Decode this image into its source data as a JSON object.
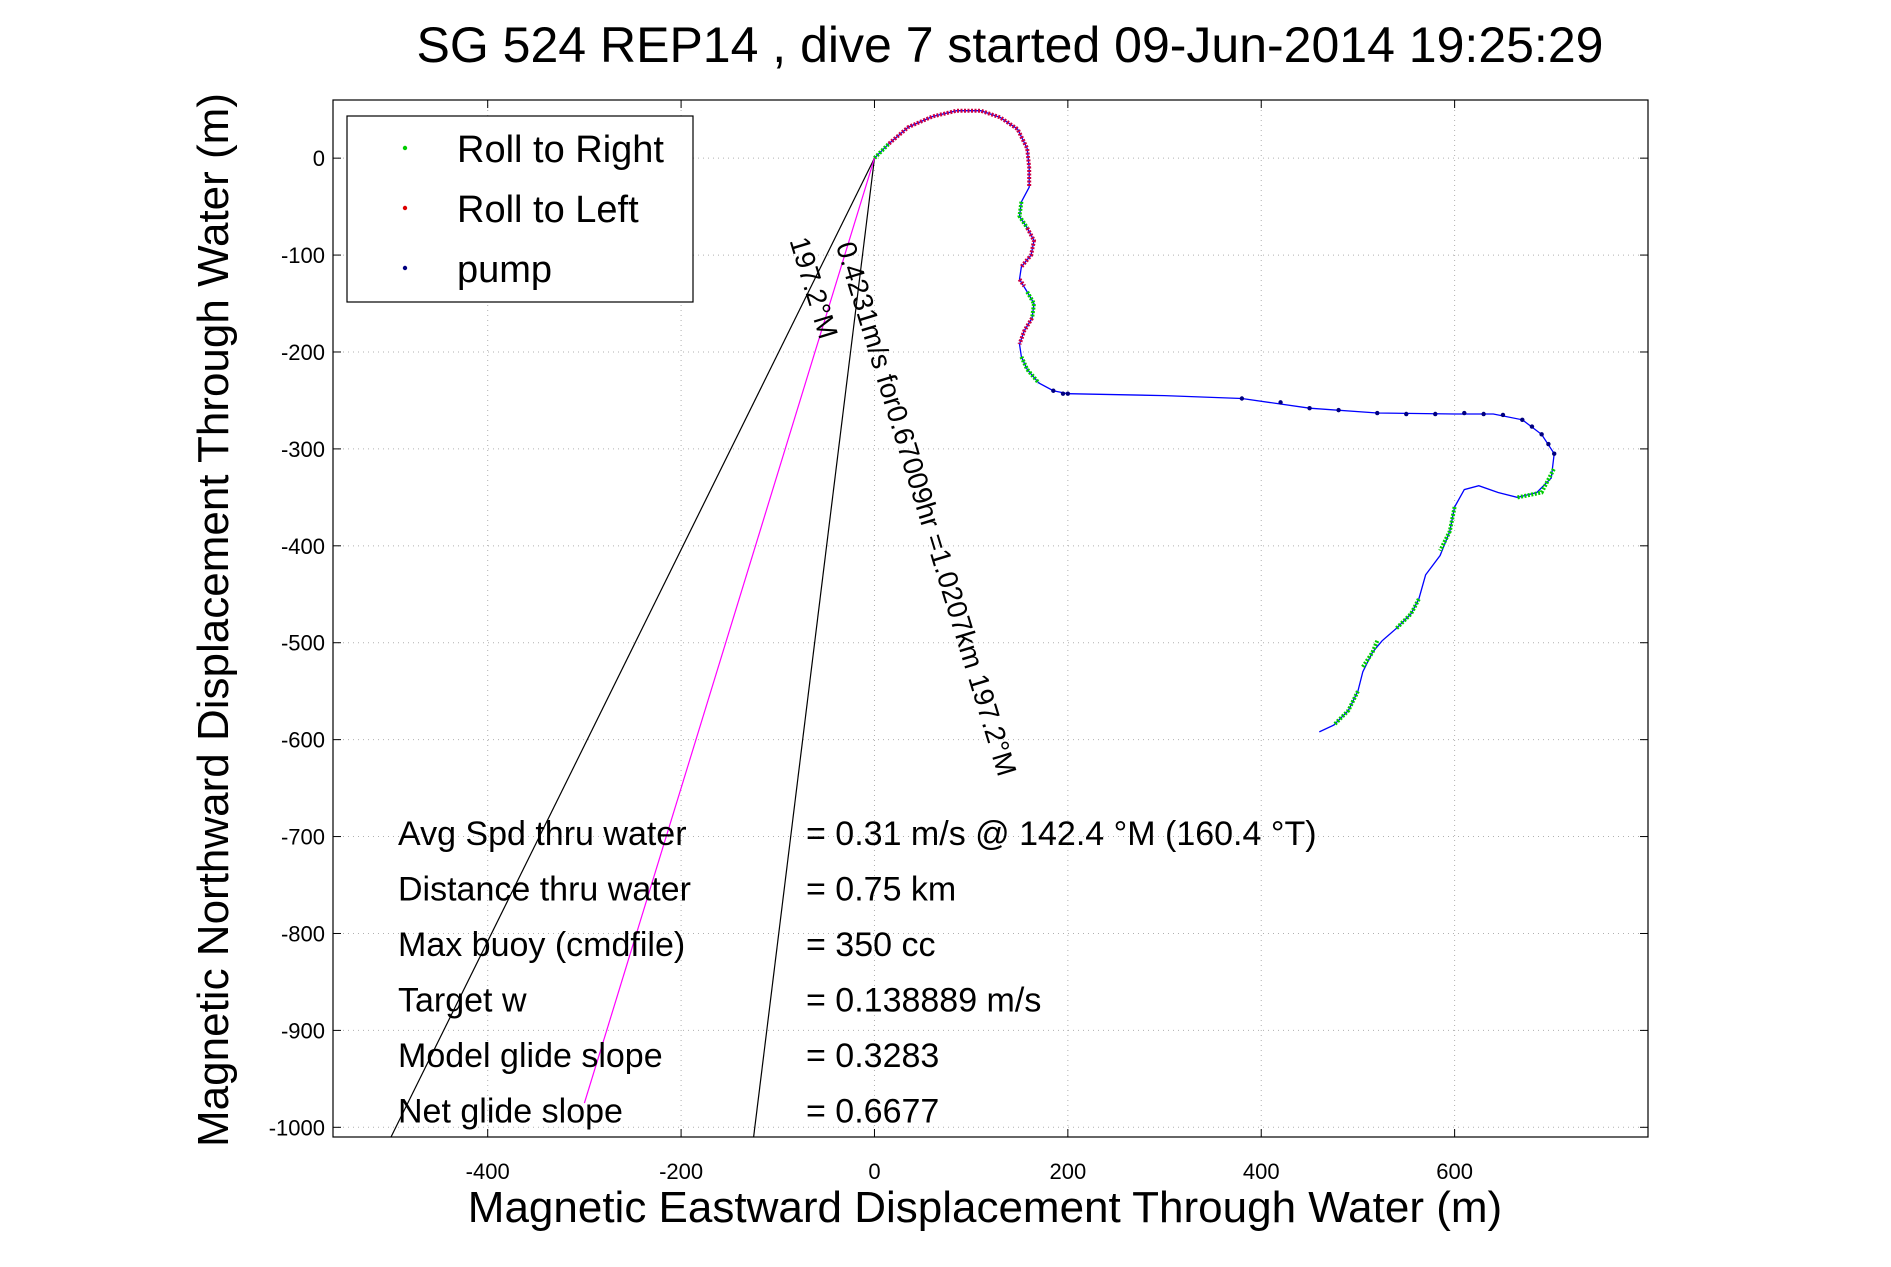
{
  "chart_data": {
    "type": "scatter",
    "title": "SG 524   REP14  , dive 7 started 09-Jun-2014 19:25:29",
    "xlabel": "Magnetic Eastward Displacement Through Water (m)",
    "ylabel": "Magnetic Northward Displacement Through Water (m)",
    "xlim": [
      -560,
      800
    ],
    "ylim": [
      -1010,
      60
    ],
    "xticks": [
      -400,
      -200,
      0,
      200,
      400,
      600
    ],
    "yticks": [
      0,
      -100,
      -200,
      -300,
      -400,
      -500,
      -600,
      -700,
      -800,
      -900,
      -1000
    ],
    "grid": true,
    "grid_style": "dotted",
    "legend_position": "top-left",
    "legend": [
      {
        "label": "Roll to Right",
        "color": "#00cc00"
      },
      {
        "label": "Roll to Left",
        "color": "#dd0000"
      },
      {
        "label": "pump",
        "color": "#000080"
      }
    ],
    "track": {
      "color": "#0000ff",
      "points": [
        [
          0,
          0
        ],
        [
          15,
          15
        ],
        [
          35,
          32
        ],
        [
          60,
          43
        ],
        [
          85,
          49
        ],
        [
          110,
          49
        ],
        [
          130,
          42
        ],
        [
          148,
          30
        ],
        [
          158,
          10
        ],
        [
          160,
          -10
        ],
        [
          160,
          -30
        ],
        [
          152,
          -45
        ],
        [
          150,
          -60
        ],
        [
          158,
          -72
        ],
        [
          165,
          -85
        ],
        [
          162,
          -100
        ],
        [
          152,
          -112
        ],
        [
          150,
          -125
        ],
        [
          158,
          -138
        ],
        [
          165,
          -150
        ],
        [
          163,
          -165
        ],
        [
          155,
          -178
        ],
        [
          150,
          -192
        ],
        [
          152,
          -205
        ],
        [
          158,
          -218
        ],
        [
          170,
          -232
        ],
        [
          185,
          -240
        ],
        [
          200,
          -243
        ],
        [
          300,
          -245
        ],
        [
          380,
          -248
        ],
        [
          450,
          -258
        ],
        [
          520,
          -263
        ],
        [
          600,
          -264
        ],
        [
          640,
          -264
        ],
        [
          670,
          -270
        ],
        [
          690,
          -285
        ],
        [
          703,
          -305
        ],
        [
          700,
          -330
        ],
        [
          685,
          -345
        ],
        [
          665,
          -350
        ],
        [
          645,
          -345
        ],
        [
          625,
          -338
        ],
        [
          610,
          -342
        ],
        [
          600,
          -360
        ],
        [
          595,
          -385
        ],
        [
          585,
          -410
        ],
        [
          570,
          -430
        ],
        [
          563,
          -455
        ],
        [
          555,
          -470
        ],
        [
          540,
          -485
        ],
        [
          525,
          -498
        ],
        [
          515,
          -510
        ],
        [
          505,
          -530
        ],
        [
          500,
          -550
        ],
        [
          490,
          -570
        ],
        [
          475,
          -585
        ],
        [
          460,
          -592
        ]
      ]
    },
    "roll_right_segments": [
      [
        [
          0,
          0
        ],
        [
          15,
          15
        ]
      ],
      [
        [
          152,
          -45
        ],
        [
          150,
          -60
        ],
        [
          158,
          -72
        ]
      ],
      [
        [
          158,
          -138
        ],
        [
          165,
          -150
        ],
        [
          163,
          -165
        ]
      ],
      [
        [
          152,
          -205
        ],
        [
          158,
          -218
        ],
        [
          170,
          -232
        ]
      ],
      [
        [
          665,
          -350
        ],
        [
          690,
          -345
        ],
        [
          703,
          -320
        ]
      ],
      [
        [
          600,
          -360
        ],
        [
          595,
          -385
        ],
        [
          585,
          -405
        ]
      ],
      [
        [
          563,
          -455
        ],
        [
          555,
          -470
        ],
        [
          540,
          -485
        ]
      ],
      [
        [
          520,
          -498
        ],
        [
          515,
          -510
        ],
        [
          505,
          -525
        ]
      ],
      [
        [
          500,
          -550
        ],
        [
          490,
          -570
        ],
        [
          475,
          -585
        ]
      ]
    ],
    "roll_left_segments": [
      [
        [
          15,
          15
        ],
        [
          35,
          32
        ],
        [
          60,
          43
        ],
        [
          85,
          49
        ],
        [
          110,
          49
        ],
        [
          130,
          42
        ],
        [
          148,
          30
        ],
        [
          158,
          10
        ],
        [
          160,
          -10
        ],
        [
          160,
          -30
        ]
      ],
      [
        [
          158,
          -72
        ],
        [
          165,
          -85
        ],
        [
          162,
          -100
        ],
        [
          152,
          -112
        ]
      ],
      [
        [
          150,
          -125
        ],
        [
          155,
          -132
        ]
      ],
      [
        [
          163,
          -165
        ],
        [
          155,
          -178
        ],
        [
          150,
          -192
        ]
      ]
    ],
    "pump_points": [
      [
        185,
        -240
      ],
      [
        195,
        -243
      ],
      [
        200,
        -243
      ],
      [
        380,
        -248
      ],
      [
        420,
        -252
      ],
      [
        450,
        -258
      ],
      [
        480,
        -260
      ],
      [
        520,
        -263
      ],
      [
        550,
        -264
      ],
      [
        580,
        -264
      ],
      [
        610,
        -263
      ],
      [
        630,
        -264
      ],
      [
        650,
        -265
      ],
      [
        670,
        -270
      ],
      [
        680,
        -277
      ],
      [
        690,
        -285
      ],
      [
        697,
        -295
      ],
      [
        703,
        -305
      ]
    ],
    "fan_lines": [
      {
        "from": [
          0,
          0
        ],
        "to": [
          -500,
          -1010
        ],
        "color": "#000000"
      },
      {
        "from": [
          0,
          0
        ],
        "to": [
          -125,
          -1010
        ],
        "color": "#000000"
      },
      {
        "from": [
          0,
          0
        ],
        "to": [
          -300,
          -975
        ],
        "color": "#ff00ff"
      }
    ],
    "annotations": [
      {
        "text": "0.4231m/s for0.67009hr =1.0207km 197.2°M",
        "x": -40,
        "y": -90,
        "rotation": 73
      },
      {
        "text": "197.2°M",
        "x": -88,
        "y": -85,
        "rotation": 73
      }
    ],
    "stats": [
      {
        "label": "Avg Spd thru water",
        "value": "=  0.31 m/s @ 142.4 °M (160.4 °T)"
      },
      {
        "label": "Distance thru water",
        "value": "=  0.75 km"
      },
      {
        "label": "Max buoy (cmdfile)",
        "value": "= 350 cc"
      },
      {
        "label": "Target w",
        "value": "= 0.138889 m/s"
      },
      {
        "label": "Model glide slope",
        "value": "= 0.3283"
      },
      {
        "label": "Net glide slope",
        "value": "= 0.6677"
      }
    ]
  }
}
